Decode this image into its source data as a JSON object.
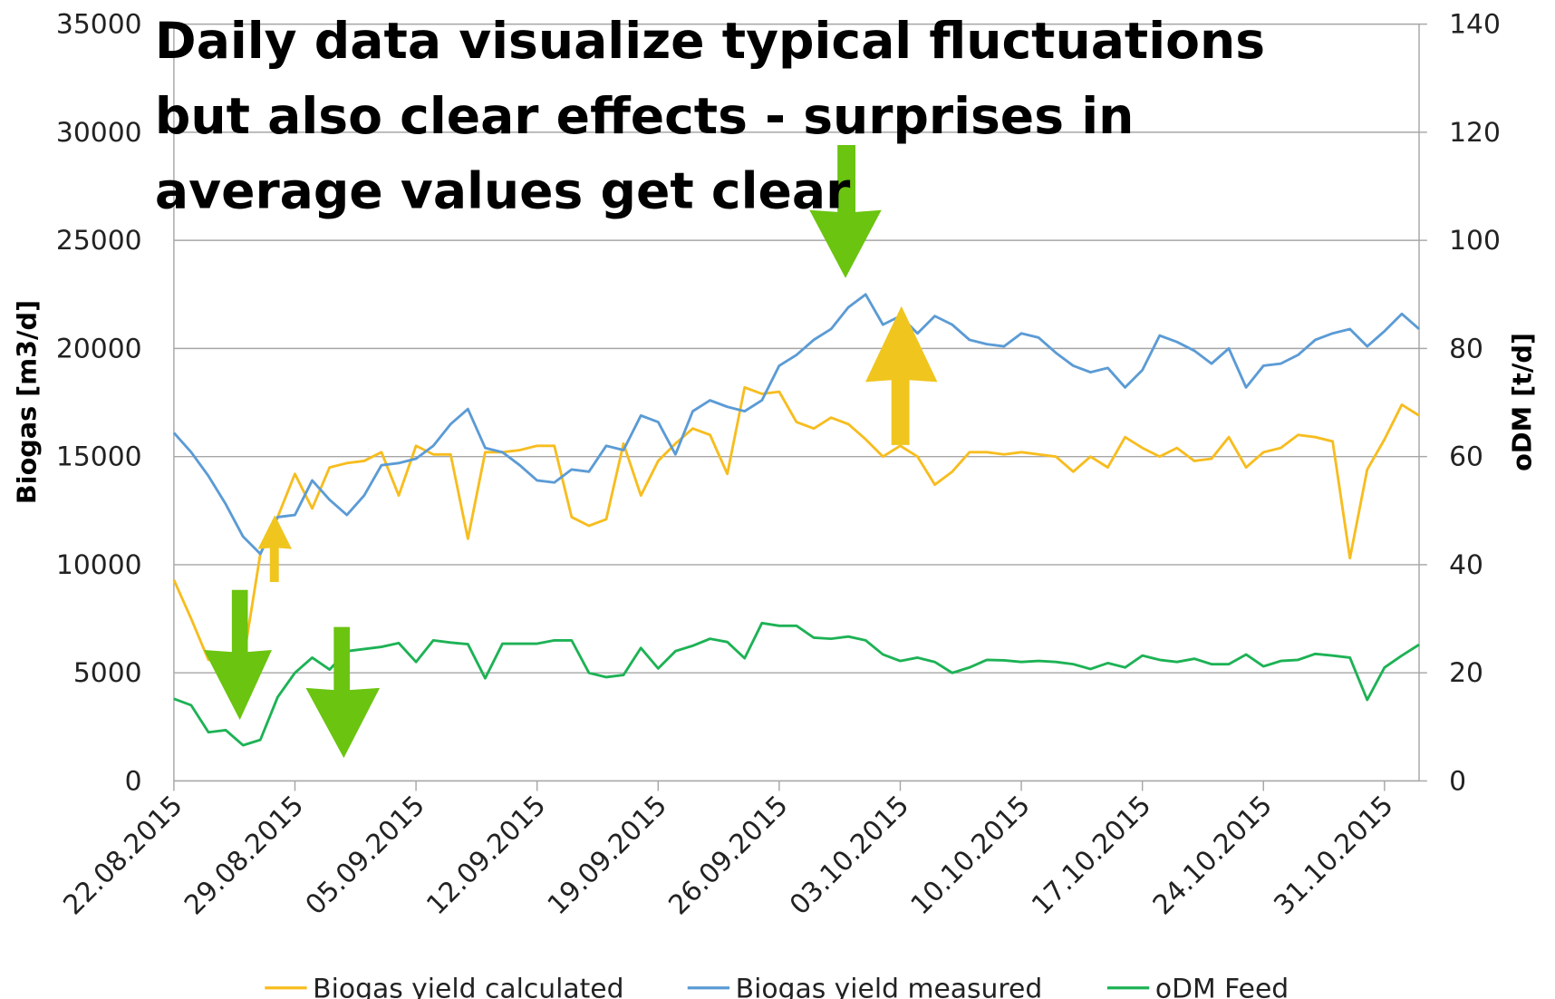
{
  "chart_data": {
    "type": "line",
    "title": [
      "Daily data visualize typical fluctuations",
      "but also clear effects - surprises in",
      "average values get clear"
    ],
    "y_label": "Biogas [m3/d]",
    "y2_label": "oDM [t/d]",
    "x": [
      "22.08.2015",
      "23.08.2015",
      "24.08.2015",
      "25.08.2015",
      "26.08.2015",
      "27.08.2015",
      "28.08.2015",
      "29.08.2015",
      "30.08.2015",
      "31.08.2015",
      "01.09.2015",
      "02.09.2015",
      "03.09.2015",
      "04.09.2015",
      "05.09.2015",
      "06.09.2015",
      "07.09.2015",
      "08.09.2015",
      "09.09.2015",
      "10.09.2015",
      "11.09.2015",
      "12.09.2015",
      "13.09.2015",
      "14.09.2015",
      "15.09.2015",
      "16.09.2015",
      "17.09.2015",
      "18.09.2015",
      "19.09.2015",
      "20.09.2015",
      "21.09.2015",
      "22.09.2015",
      "23.09.2015",
      "24.09.2015",
      "25.09.2015",
      "26.09.2015",
      "27.09.2015",
      "28.09.2015",
      "29.09.2015",
      "30.09.2015",
      "01.10.2015",
      "02.10.2015",
      "03.10.2015",
      "04.10.2015",
      "05.10.2015",
      "06.10.2015",
      "07.10.2015",
      "08.10.2015",
      "09.10.2015",
      "10.10.2015",
      "11.10.2015",
      "12.10.2015",
      "13.10.2015",
      "14.10.2015",
      "15.10.2015",
      "16.10.2015",
      "17.10.2015",
      "18.10.2015",
      "19.10.2015",
      "20.10.2015",
      "21.10.2015",
      "22.10.2015",
      "23.10.2015",
      "24.10.2015",
      "25.10.2015",
      "26.10.2015",
      "27.10.2015",
      "28.10.2015",
      "29.10.2015",
      "30.10.2015",
      "31.10.2015",
      "01.11.2015",
      "02.11.2015"
    ],
    "xticks": [
      "22.08.2015",
      "29.08.2015",
      "05.09.2015",
      "12.09.2015",
      "19.09.2015",
      "26.09.2015",
      "03.10.2015",
      "10.10.2015",
      "17.10.2015",
      "24.10.2015",
      "31.10.2015"
    ],
    "series": [
      {
        "name": "Biogas yield calculated",
        "color": "#f7bd1f",
        "values": [
          9300,
          7500,
          5600,
          5800,
          5500,
          10500,
          12200,
          14200,
          12600,
          14500,
          14700,
          14800,
          15200,
          13200,
          15500,
          15100,
          15100,
          11200,
          15200,
          15200,
          15300,
          15500,
          15500,
          12200,
          11800,
          12100,
          15600,
          13200,
          14800,
          15600,
          16300,
          16000,
          14200,
          18200,
          17900,
          18000,
          16600,
          16300,
          16800,
          16500,
          15800,
          15000,
          15500,
          15000,
          13700,
          14300,
          15200,
          15200,
          15100,
          15200,
          15100,
          15000,
          14300,
          15000,
          14500,
          15900,
          15400,
          15000,
          15400,
          14800,
          14900,
          15900,
          14500,
          15200,
          15400,
          16000,
          15900,
          15700,
          10300,
          14400,
          15800,
          17400,
          16900
        ]
      },
      {
        "name": "Biogas yield measured",
        "color": "#5b9bd5",
        "values": [
          16100,
          15200,
          14100,
          12800,
          11300,
          10500,
          12200,
          12300,
          13900,
          13000,
          12300,
          13200,
          14600,
          14700,
          14900,
          15500,
          16500,
          17200,
          15400,
          15200,
          14600,
          13900,
          13800,
          14400,
          14300,
          15500,
          15300,
          16900,
          16600,
          15100,
          17100,
          17600,
          17300,
          17100,
          17600,
          19200,
          19700,
          20400,
          20900,
          21900,
          22500,
          21100,
          21500,
          20700,
          21500,
          21100,
          20400,
          20200,
          20100,
          20700,
          20500,
          19800,
          19200,
          18900,
          19100,
          18200,
          19000,
          20600,
          20300,
          19900,
          19300,
          20000,
          18200,
          19200,
          19300,
          19700,
          20400,
          20700,
          20900,
          20100,
          20800,
          21600,
          20900
        ]
      },
      {
        "name": "oDM Feed",
        "color": "#1db255",
        "axis": "y2",
        "values": [
          15.2,
          14,
          9,
          9.4,
          6.6,
          7.6,
          15.5,
          20,
          22.8,
          20.6,
          24,
          24.4,
          24.8,
          25.5,
          22,
          26,
          25.6,
          25.3,
          19,
          25.4,
          25.4,
          25.4,
          26,
          26,
          20,
          19.2,
          19.6,
          24.6,
          20.8,
          24,
          25,
          26.3,
          25.7,
          22.7,
          29.2,
          28.7,
          28.7,
          26.5,
          26.3,
          26.7,
          26,
          23.4,
          22.2,
          22.8,
          22,
          20,
          21,
          22.4,
          22.3,
          22,
          22.2,
          22,
          21.6,
          20.7,
          21.8,
          21,
          23.2,
          22.4,
          22,
          22.6,
          21.6,
          21.6,
          23.4,
          21.2,
          22.2,
          22.4,
          23.5,
          23.2,
          22.8,
          15,
          21,
          23.2,
          25.2
        ]
      }
    ],
    "ylim": [
      0,
      35000
    ],
    "yticks": [
      0,
      5000,
      10000,
      15000,
      20000,
      25000,
      30000,
      35000
    ],
    "y2lim": [
      0,
      140
    ],
    "y2ticks": [
      0,
      20,
      40,
      60,
      80,
      100,
      120,
      140
    ],
    "grid": true,
    "legend": "bottom"
  }
}
